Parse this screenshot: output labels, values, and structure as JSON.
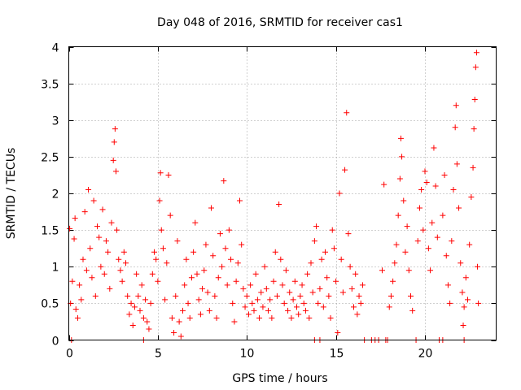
{
  "chart_data": {
    "type": "scatter",
    "title": "Day 048 of 2016, SRMTID for receiver cas1",
    "xlabel": "GPS time / hours",
    "ylabel": "SRMTID / TECUs",
    "xlim": [
      0,
      24
    ],
    "ylim": [
      0,
      4
    ],
    "xticks": [
      0,
      5,
      10,
      15,
      20
    ],
    "xtick_labels": [
      "0",
      "5",
      "10",
      "15",
      "20"
    ],
    "yticks": [
      0,
      0.5,
      1,
      1.5,
      2,
      2.5,
      3,
      3.5,
      4
    ],
    "ytick_labels": [
      "0",
      "0.5",
      "1",
      "1.5",
      "2",
      "2.5",
      "3",
      "3.5",
      "4"
    ],
    "grid": true,
    "marker": "plus",
    "color": "#ff0000",
    "series": [
      {
        "name": "SRMTID",
        "points": [
          [
            0.05,
            1.52
          ],
          [
            0.1,
            0.5
          ],
          [
            0.2,
            0.8
          ],
          [
            0.3,
            1.38
          ],
          [
            0.35,
            1.66
          ],
          [
            0.4,
            0.42
          ],
          [
            0.5,
            0.3
          ],
          [
            0.6,
            0.75
          ],
          [
            0.7,
            0.55
          ],
          [
            0.8,
            1.1
          ],
          [
            0.9,
            1.75
          ],
          [
            1.0,
            0.95
          ],
          [
            1.1,
            2.05
          ],
          [
            1.2,
            1.25
          ],
          [
            1.3,
            0.85
          ],
          [
            1.4,
            1.9
          ],
          [
            1.5,
            0.6
          ],
          [
            1.6,
            1.55
          ],
          [
            1.7,
            1.4
          ],
          [
            1.8,
            1.0
          ],
          [
            1.9,
            1.78
          ],
          [
            2.0,
            0.9
          ],
          [
            2.1,
            1.35
          ],
          [
            2.2,
            1.2
          ],
          [
            2.3,
            0.7
          ],
          [
            2.4,
            1.6
          ],
          [
            2.5,
            2.45
          ],
          [
            2.55,
            2.7
          ],
          [
            2.6,
            2.88
          ],
          [
            2.65,
            2.3
          ],
          [
            2.7,
            1.5
          ],
          [
            2.8,
            1.1
          ],
          [
            2.9,
            0.95
          ],
          [
            3.0,
            0.8
          ],
          [
            3.1,
            1.2
          ],
          [
            3.2,
            1.05
          ],
          [
            3.3,
            0.6
          ],
          [
            3.4,
            0.35
          ],
          [
            3.5,
            0.5
          ],
          [
            3.6,
            0.2
          ],
          [
            3.7,
            0.45
          ],
          [
            3.8,
            0.9
          ],
          [
            3.9,
            0.6
          ],
          [
            4.0,
            0.4
          ],
          [
            4.1,
            0.75
          ],
          [
            4.2,
            0.3
          ],
          [
            4.3,
            0.55
          ],
          [
            4.4,
            0.25
          ],
          [
            4.5,
            0.15
          ],
          [
            4.6,
            0.5
          ],
          [
            4.7,
            0.9
          ],
          [
            4.8,
            1.2
          ],
          [
            4.9,
            1.1
          ],
          [
            5.0,
            0.8
          ],
          [
            5.1,
            1.9
          ],
          [
            5.15,
            2.28
          ],
          [
            5.2,
            1.5
          ],
          [
            5.3,
            1.25
          ],
          [
            5.4,
            0.55
          ],
          [
            5.5,
            1.05
          ],
          [
            5.6,
            2.25
          ],
          [
            5.7,
            1.7
          ],
          [
            5.8,
            0.3
          ],
          [
            5.9,
            0.1
          ],
          [
            6.0,
            0.6
          ],
          [
            6.1,
            1.35
          ],
          [
            6.2,
            0.25
          ],
          [
            6.3,
            0.05
          ],
          [
            6.4,
            0.4
          ],
          [
            6.5,
            0.75
          ],
          [
            6.6,
            1.1
          ],
          [
            6.7,
            0.5
          ],
          [
            6.8,
            0.3
          ],
          [
            6.9,
            0.85
          ],
          [
            7.0,
            1.2
          ],
          [
            7.1,
            1.6
          ],
          [
            7.2,
            0.9
          ],
          [
            7.3,
            0.55
          ],
          [
            7.4,
            0.35
          ],
          [
            7.5,
            0.7
          ],
          [
            7.6,
            0.95
          ],
          [
            7.7,
            1.3
          ],
          [
            7.8,
            0.65
          ],
          [
            7.9,
            0.4
          ],
          [
            8.0,
            1.8
          ],
          [
            8.1,
            1.15
          ],
          [
            8.2,
            0.6
          ],
          [
            8.3,
            0.3
          ],
          [
            8.4,
            0.85
          ],
          [
            8.5,
            1.45
          ],
          [
            8.6,
            1.0
          ],
          [
            8.7,
            2.17
          ],
          [
            8.8,
            1.25
          ],
          [
            8.9,
            0.75
          ],
          [
            9.0,
            1.5
          ],
          [
            9.1,
            1.1
          ],
          [
            9.2,
            0.5
          ],
          [
            9.3,
            0.25
          ],
          [
            9.4,
            0.8
          ],
          [
            9.5,
            1.05
          ],
          [
            9.6,
            1.9
          ],
          [
            9.7,
            1.3
          ],
          [
            9.8,
            0.7
          ],
          [
            9.9,
            0.45
          ],
          [
            10.0,
            0.6
          ],
          [
            10.1,
            0.35
          ],
          [
            10.2,
            0.75
          ],
          [
            10.3,
            0.5
          ],
          [
            10.4,
            0.4
          ],
          [
            10.5,
            0.9
          ],
          [
            10.6,
            0.55
          ],
          [
            10.7,
            0.3
          ],
          [
            10.8,
            0.65
          ],
          [
            10.9,
            0.45
          ],
          [
            11.0,
            1.0
          ],
          [
            11.1,
            0.7
          ],
          [
            11.2,
            0.4
          ],
          [
            11.3,
            0.55
          ],
          [
            11.4,
            0.3
          ],
          [
            11.5,
            0.8
          ],
          [
            11.6,
            1.2
          ],
          [
            11.7,
            0.6
          ],
          [
            11.8,
            1.85
          ],
          [
            11.9,
            1.1
          ],
          [
            12.0,
            0.75
          ],
          [
            12.1,
            0.5
          ],
          [
            12.2,
            0.95
          ],
          [
            12.3,
            0.4
          ],
          [
            12.4,
            0.65
          ],
          [
            12.5,
            0.3
          ],
          [
            12.6,
            0.55
          ],
          [
            12.7,
            0.8
          ],
          [
            12.8,
            0.45
          ],
          [
            12.9,
            0.35
          ],
          [
            13.0,
            0.6
          ],
          [
            13.1,
            0.75
          ],
          [
            13.2,
            0.5
          ],
          [
            13.3,
            0.4
          ],
          [
            13.4,
            0.9
          ],
          [
            13.5,
            0.3
          ],
          [
            13.6,
            1.05
          ],
          [
            13.7,
            0.65
          ],
          [
            13.8,
            1.35
          ],
          [
            13.9,
            1.55
          ],
          [
            14.0,
            0.5
          ],
          [
            14.1,
            0.7
          ],
          [
            14.2,
            1.1
          ],
          [
            14.3,
            0.45
          ],
          [
            14.4,
            1.2
          ],
          [
            14.5,
            0.85
          ],
          [
            14.6,
            0.6
          ],
          [
            14.7,
            0.3
          ],
          [
            14.8,
            1.5
          ],
          [
            14.9,
            1.25
          ],
          [
            15.0,
            0.8
          ],
          [
            15.1,
            0.1
          ],
          [
            15.2,
            2.0
          ],
          [
            15.3,
            1.1
          ],
          [
            15.4,
            0.65
          ],
          [
            15.5,
            2.32
          ],
          [
            15.6,
            3.1
          ],
          [
            15.7,
            1.45
          ],
          [
            15.8,
            1.0
          ],
          [
            15.9,
            0.7
          ],
          [
            16.0,
            0.45
          ],
          [
            16.1,
            0.9
          ],
          [
            16.2,
            0.35
          ],
          [
            16.3,
            0.6
          ],
          [
            16.4,
            0.5
          ],
          [
            16.5,
            0.75
          ],
          [
            17.0,
            0.0
          ],
          [
            17.4,
            0.0
          ],
          [
            17.6,
            0.95
          ],
          [
            17.7,
            2.12
          ],
          [
            17.8,
            0.0
          ],
          [
            18.0,
            0.45
          ],
          [
            18.1,
            0.6
          ],
          [
            18.2,
            0.8
          ],
          [
            18.3,
            1.05
          ],
          [
            18.4,
            1.3
          ],
          [
            18.5,
            1.7
          ],
          [
            18.6,
            2.2
          ],
          [
            18.65,
            2.75
          ],
          [
            18.7,
            2.5
          ],
          [
            18.8,
            1.9
          ],
          [
            18.9,
            1.2
          ],
          [
            19.0,
            1.55
          ],
          [
            19.1,
            0.95
          ],
          [
            19.2,
            0.6
          ],
          [
            19.3,
            0.4
          ],
          [
            19.5,
            0.0
          ],
          [
            19.6,
            1.35
          ],
          [
            19.7,
            1.8
          ],
          [
            19.8,
            2.05
          ],
          [
            19.9,
            1.5
          ],
          [
            20.0,
            2.3
          ],
          [
            20.1,
            2.15
          ],
          [
            20.2,
            1.25
          ],
          [
            20.3,
            0.95
          ],
          [
            20.4,
            1.6
          ],
          [
            20.5,
            2.62
          ],
          [
            20.6,
            2.1
          ],
          [
            20.7,
            1.4
          ],
          [
            20.8,
            0.0
          ],
          [
            21.0,
            1.7
          ],
          [
            21.1,
            2.25
          ],
          [
            21.2,
            1.15
          ],
          [
            21.3,
            0.75
          ],
          [
            21.4,
            0.5
          ],
          [
            21.5,
            1.35
          ],
          [
            21.6,
            2.05
          ],
          [
            21.7,
            2.9
          ],
          [
            21.75,
            3.2
          ],
          [
            21.8,
            2.4
          ],
          [
            21.9,
            1.8
          ],
          [
            22.0,
            1.05
          ],
          [
            22.1,
            0.65
          ],
          [
            22.15,
            0.2
          ],
          [
            22.2,
            0.45
          ],
          [
            22.3,
            0.85
          ],
          [
            22.4,
            0.55
          ],
          [
            22.5,
            1.3
          ],
          [
            22.6,
            1.95
          ],
          [
            22.7,
            2.35
          ],
          [
            22.75,
            2.88
          ],
          [
            22.8,
            3.28
          ],
          [
            22.85,
            3.72
          ],
          [
            22.9,
            3.92
          ],
          [
            22.95,
            1.0
          ],
          [
            23.0,
            0.5
          ],
          [
            0.15,
            0.0
          ],
          [
            4.2,
            0.0
          ],
          [
            13.8,
            0.0
          ],
          [
            14.1,
            0.0
          ],
          [
            16.6,
            0.0
          ],
          [
            17.2,
            0.0
          ],
          [
            17.9,
            0.0
          ],
          [
            21.0,
            0.0
          ],
          [
            22.2,
            0.0
          ]
        ]
      }
    ]
  }
}
